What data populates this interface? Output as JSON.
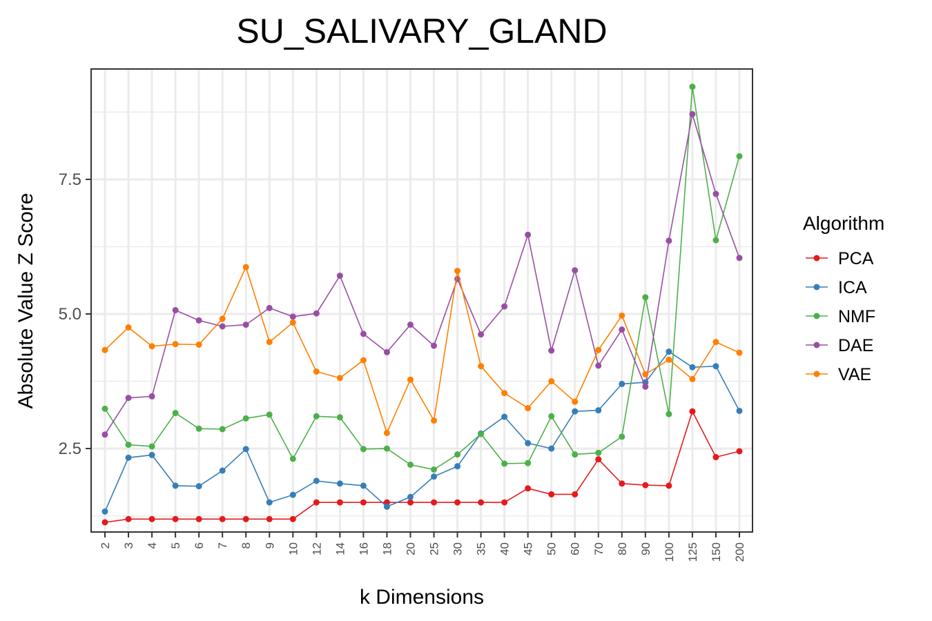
{
  "chart_data": {
    "type": "line",
    "title": "SU_SALIVARY_GLAND",
    "xlabel": "k Dimensions",
    "ylabel": "Absolute Value Z Score",
    "categories": [
      "2",
      "3",
      "4",
      "5",
      "6",
      "7",
      "8",
      "9",
      "10",
      "12",
      "14",
      "16",
      "18",
      "20",
      "25",
      "30",
      "35",
      "40",
      "45",
      "50",
      "60",
      "70",
      "80",
      "90",
      "100",
      "125",
      "150",
      "200"
    ],
    "yticks": [
      "2.5",
      "5.0",
      "7.5"
    ],
    "ylim": [
      0.95,
      9.55
    ],
    "grid": true,
    "legend": {
      "title": "Algorithm",
      "placement": "right"
    },
    "series": [
      {
        "name": "PCA",
        "color": "#e41a1c",
        "values": [
          1.13,
          1.19,
          1.19,
          1.19,
          1.19,
          1.19,
          1.19,
          1.19,
          1.19,
          1.5,
          1.5,
          1.5,
          1.5,
          1.5,
          1.5,
          1.5,
          1.5,
          1.5,
          1.76,
          1.65,
          1.65,
          2.3,
          1.85,
          1.82,
          1.81,
          3.19,
          2.34,
          2.45
        ]
      },
      {
        "name": "ICA",
        "color": "#377eb8",
        "values": [
          1.33,
          2.33,
          2.38,
          1.81,
          1.8,
          2.09,
          2.49,
          1.5,
          1.64,
          1.9,
          1.85,
          1.81,
          1.42,
          1.6,
          1.98,
          2.17,
          2.78,
          3.09,
          2.6,
          2.5,
          3.19,
          3.21,
          3.7,
          3.73,
          4.3,
          4.01,
          4.03,
          3.2
        ]
      },
      {
        "name": "NMF",
        "color": "#4daf4a",
        "values": [
          3.24,
          2.57,
          2.54,
          3.16,
          2.87,
          2.86,
          3.06,
          3.13,
          2.31,
          3.1,
          3.08,
          2.49,
          2.5,
          2.2,
          2.11,
          2.39,
          2.77,
          2.22,
          2.23,
          3.1,
          2.39,
          2.42,
          2.72,
          5.31,
          3.14,
          9.22,
          6.37,
          7.93
        ]
      },
      {
        "name": "DAE",
        "color": "#984ea3",
        "values": [
          2.76,
          3.44,
          3.47,
          5.07,
          4.88,
          4.77,
          4.8,
          5.11,
          4.95,
          5.01,
          5.71,
          4.63,
          4.29,
          4.8,
          4.41,
          5.65,
          4.62,
          5.14,
          6.47,
          4.32,
          5.81,
          4.04,
          4.71,
          3.65,
          6.36,
          8.71,
          7.23,
          6.04
        ]
      },
      {
        "name": "VAE",
        "color": "#ff7f00",
        "values": [
          4.33,
          4.75,
          4.4,
          4.44,
          4.43,
          4.91,
          5.87,
          4.48,
          4.84,
          3.93,
          3.81,
          4.14,
          2.79,
          3.78,
          3.02,
          5.8,
          4.03,
          3.53,
          3.25,
          3.75,
          3.37,
          4.33,
          4.97,
          3.88,
          4.15,
          3.79,
          4.48,
          4.28
        ]
      }
    ]
  }
}
